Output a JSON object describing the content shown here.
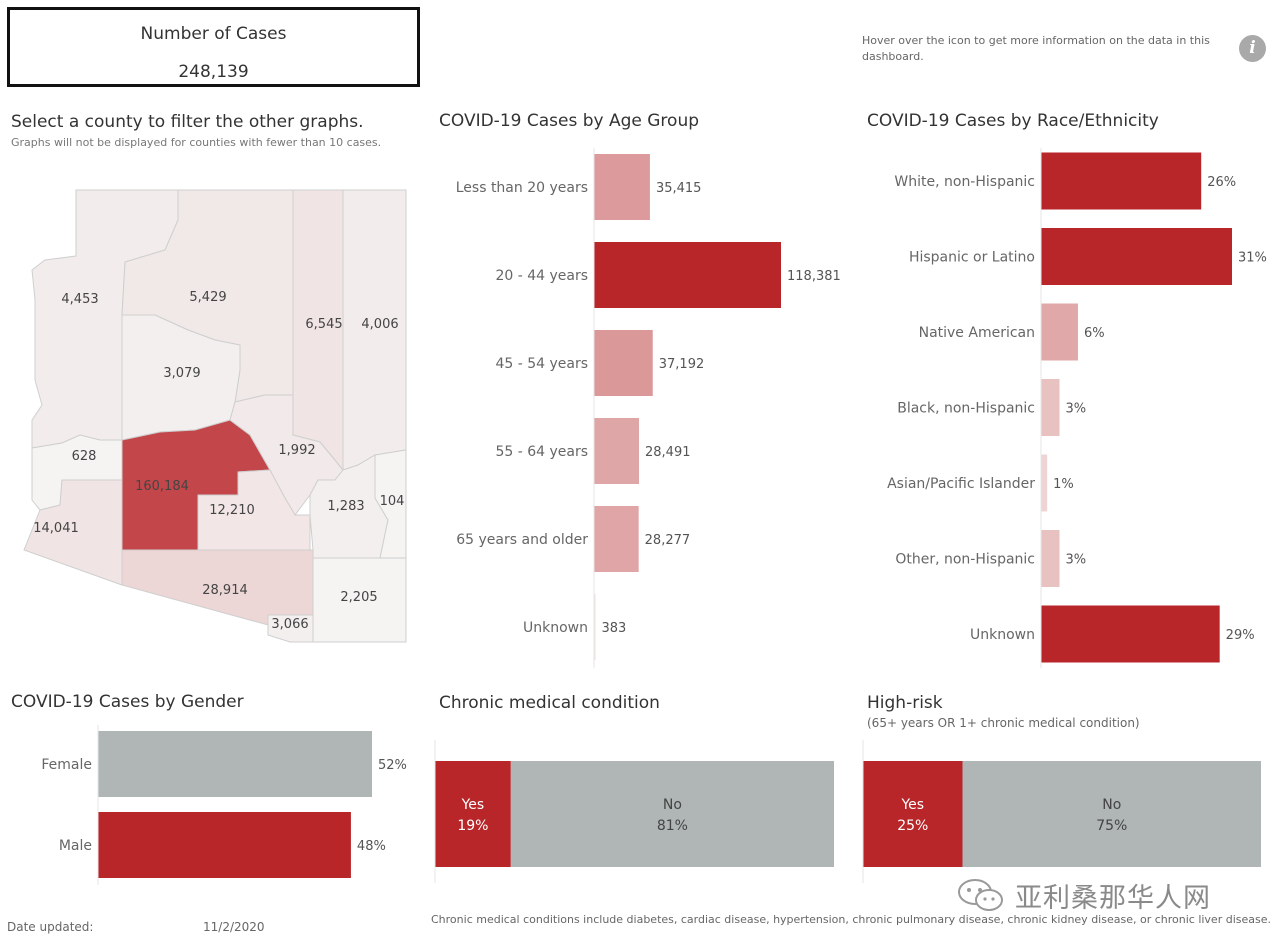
{
  "kpi": {
    "title": "Number of Cases",
    "value": "248,139"
  },
  "hover_note": "Hover over the icon to get more information on the data in this dashboard.",
  "info_icon": "info-icon",
  "map": {
    "title": "Select a county to filter the other graphs.",
    "note": "Graphs will not be displayed for counties with fewer than 10 cases.",
    "counties": [
      {
        "label": "4,453",
        "value": 4453
      },
      {
        "label": "5,429",
        "value": 5429
      },
      {
        "label": "6,545",
        "value": 6545
      },
      {
        "label": "4,006",
        "value": 4006
      },
      {
        "label": "3,079",
        "value": 3079
      },
      {
        "label": "628",
        "value": 628
      },
      {
        "label": "160,184",
        "value": 160184
      },
      {
        "label": "1,992",
        "value": 1992
      },
      {
        "label": "14,041",
        "value": 14041
      },
      {
        "label": "12,210",
        "value": 12210
      },
      {
        "label": "1,283",
        "value": 1283
      },
      {
        "label": "104",
        "value": 104
      },
      {
        "label": "28,914",
        "value": 28914
      },
      {
        "label": "2,205",
        "value": 2205
      },
      {
        "label": "3,066",
        "value": 3066
      }
    ]
  },
  "colors": {
    "accent": "#b8262a",
    "gray": "#b0b5b5",
    "light": "#f3ecec",
    "border": "#cccccc"
  },
  "chart_data": [
    {
      "type": "bar",
      "orientation": "horizontal",
      "title": "COVID-19 Cases by Age Group",
      "categories": [
        "Less than 20 years",
        "20 - 44 years",
        "45 - 54 years",
        "55 - 64 years",
        "65 years and older",
        "Unknown"
      ],
      "values": [
        35415,
        118381,
        37192,
        28491,
        28277,
        383
      ],
      "value_labels": [
        "35,415",
        "118,381",
        "37,192",
        "28,491",
        "28,277",
        "383"
      ],
      "grid": false
    },
    {
      "type": "bar",
      "orientation": "horizontal",
      "title": "COVID-19 Cases by Race/Ethnicity",
      "categories": [
        "White, non-Hispanic",
        "Hispanic or Latino",
        "Native American",
        "Black, non-Hispanic",
        "Asian/Pacific Islander",
        "Other, non-Hispanic",
        "Unknown"
      ],
      "values": [
        26,
        31,
        6,
        3,
        1,
        3,
        29
      ],
      "value_labels": [
        "26%",
        "31%",
        "6%",
        "3%",
        "1%",
        "3%",
        "29%"
      ],
      "grid": false
    },
    {
      "type": "bar",
      "orientation": "horizontal",
      "title": "COVID-19 Cases by Gender",
      "categories": [
        "Female",
        "Male"
      ],
      "values": [
        52,
        48
      ],
      "value_labels": [
        "52%",
        "48%"
      ],
      "colors": [
        "#b0b5b5",
        "#b8262a"
      ],
      "grid": false
    },
    {
      "type": "bar",
      "orientation": "stacked-horizontal",
      "title": "Chronic medical condition",
      "categories": [
        "Yes",
        "No"
      ],
      "values": [
        19,
        81
      ],
      "value_labels": [
        "19%",
        "81%"
      ],
      "colors": [
        "#b8262a",
        "#b0b5b5"
      ]
    },
    {
      "type": "bar",
      "orientation": "stacked-horizontal",
      "title": "High-risk",
      "subtitle": "(65+ years OR 1+ chronic medical condition)",
      "categories": [
        "Yes",
        "No"
      ],
      "values": [
        25,
        75
      ],
      "value_labels": [
        "25%",
        "75%"
      ],
      "colors": [
        "#b8262a",
        "#b0b5b5"
      ]
    }
  ],
  "footer": {
    "date_label": "Date updated:",
    "date_value": "11/2/2020",
    "chronic_note": "Chronic medical conditions include diabetes, cardiac disease, hypertension, chronic pulmonary disease, chronic kidney disease, or chronic liver disease.",
    "watermark": "亚利桑那华人网"
  }
}
